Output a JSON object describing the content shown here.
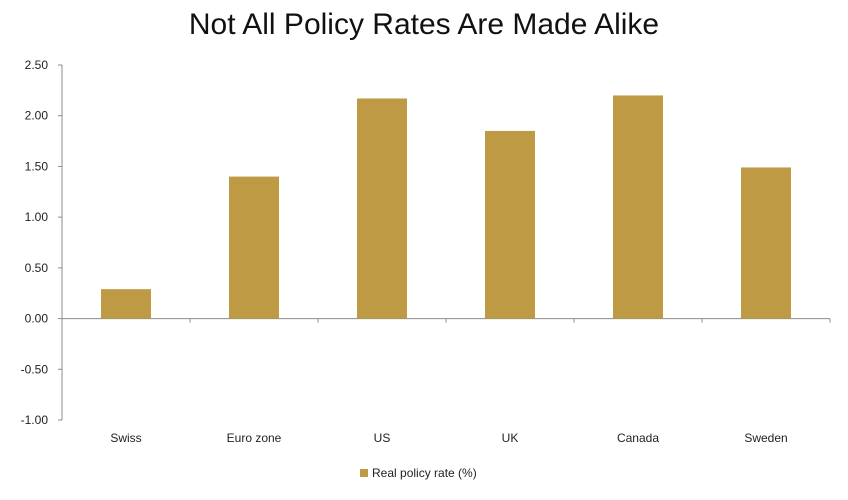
{
  "chart_data": {
    "type": "bar",
    "title": "Not All Policy Rates Are Made Alike",
    "categories": [
      "Swiss",
      "Euro zone",
      "US",
      "UK",
      "Canada",
      "Sweden"
    ],
    "series": [
      {
        "name": "Real policy rate (%)",
        "values": [
          0.29,
          1.4,
          2.17,
          1.85,
          2.2,
          1.49
        ]
      }
    ],
    "ylim": [
      -1.0,
      2.5
    ],
    "yticks": [
      "2.50",
      "2.00",
      "1.50",
      "1.00",
      "0.50",
      "0.00",
      "-0.50",
      "-1.00"
    ],
    "ytick_values": [
      2.5,
      2.0,
      1.5,
      1.0,
      0.5,
      0.0,
      -0.5,
      -1.0
    ],
    "grid": false,
    "legend_position": "bottom",
    "colors": {
      "bar": "#BF9A45",
      "axis": "#8c8c8c"
    }
  }
}
